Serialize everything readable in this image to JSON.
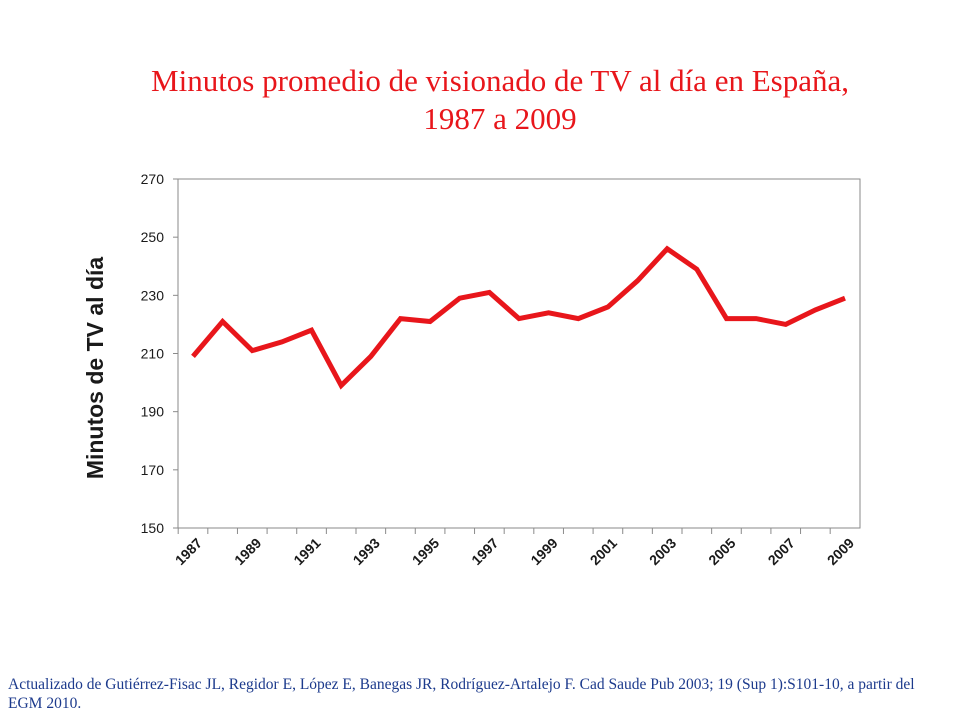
{
  "title": {
    "line1": "Minutos promedio de visionado de TV al día en España,",
    "line2": "1987 a 2009"
  },
  "footnote": "Actualizado de Gutiérrez-Fisac JL, Regidor E, López E, Banegas JR, Rodríguez-Artalejo F. Cad Saude Pub 2003; 19 (Sup 1):S101-10, a partir del EGM 2010.",
  "colors": {
    "title": "#e8161b",
    "line": "#e8161b",
    "footnote": "#1c3a8c"
  },
  "chart_data": {
    "type": "line",
    "title": "Minutos promedio de visionado de TV al día en España, 1987 a 2009",
    "xlabel": "",
    "ylabel": "Minutos de TV al día",
    "ylim": [
      150,
      270
    ],
    "yticks": [
      150,
      170,
      190,
      210,
      230,
      250,
      270
    ],
    "xtick_labels": [
      "1987",
      "1989",
      "1991",
      "1993",
      "1995",
      "1997",
      "1999",
      "2001",
      "2003",
      "2005",
      "2007",
      "2009"
    ],
    "grid": false,
    "legend": "none",
    "series": [
      {
        "name": "",
        "x": [
          1987,
          1988,
          1989,
          1990,
          1991,
          1992,
          1993,
          1994,
          1995,
          1996,
          1997,
          1998,
          1999,
          2000,
          2001,
          2002,
          2003,
          2004,
          2005,
          2006,
          2007,
          2008,
          2009
        ],
        "values": [
          209,
          221,
          211,
          214,
          218,
          199,
          209,
          222,
          221,
          229,
          231,
          222,
          224,
          222,
          226,
          235,
          246,
          239,
          222,
          222,
          220,
          225,
          229
        ]
      }
    ]
  }
}
